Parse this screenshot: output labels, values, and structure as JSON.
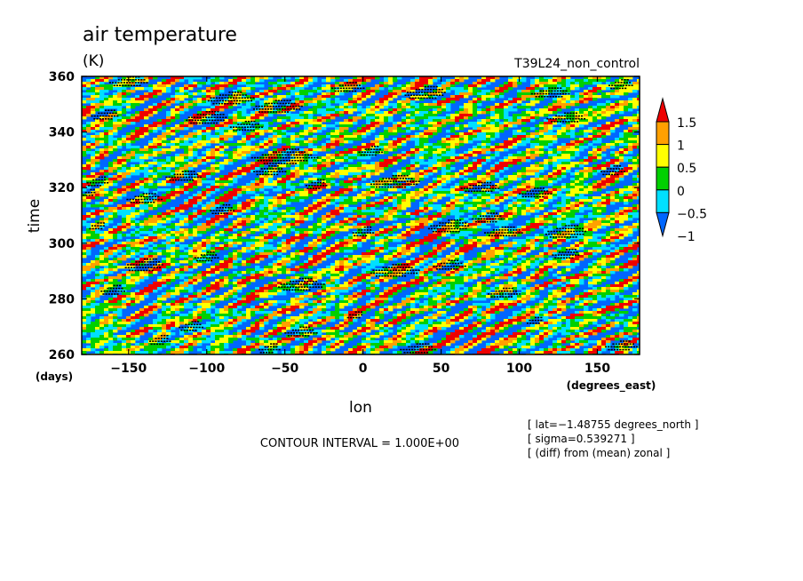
{
  "chart_data": {
    "type": "heatmap",
    "title": "air temperature",
    "subtitle": "(K)",
    "run_label": "T39L24_non_control",
    "xlabel": "lon",
    "x_unit": "(degrees_east)",
    "ylabel": "time",
    "y_unit": "(days)",
    "xlim": [
      -180,
      177
    ],
    "ylim": [
      260,
      360
    ],
    "x_ticks": [
      -150,
      -100,
      -50,
      0,
      50,
      100,
      150
    ],
    "x_tick_labels": [
      "−150",
      "−100",
      "−50",
      "0",
      "50",
      "100",
      "150"
    ],
    "y_ticks": [
      260,
      280,
      300,
      320,
      340,
      360
    ],
    "y_tick_labels": [
      "260",
      "280",
      "300",
      "320",
      "340",
      "360"
    ],
    "colorbar": {
      "levels": [
        -1,
        -0.5,
        0,
        0.5,
        1,
        1.5
      ],
      "level_labels": [
        "−1",
        "−0.5",
        "0",
        "0.5",
        "1",
        "1.5"
      ],
      "colors": [
        "#0066ff",
        "#00e0ff",
        "#00d000",
        "#ffff00",
        "#ffa000",
        "#ee0000"
      ],
      "under_color": "#0066ff",
      "over_color": "#ee0000"
    },
    "negative_contour_color": "#000000",
    "contour_interval_text": "CONTOUR INTERVAL = 1.000E+00",
    "info_lines": [
      "[ lat=−1.48755 degrees_north ]",
      "[ sigma=0.539271 ]",
      "[ (diff) from (mean) zonal ]"
    ]
  }
}
